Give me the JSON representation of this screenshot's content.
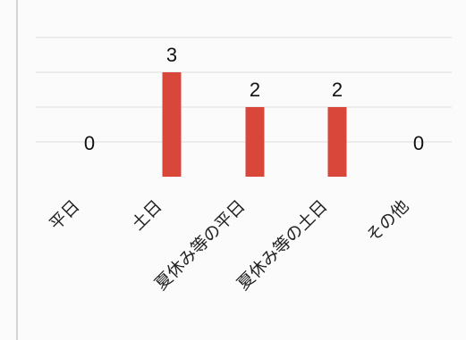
{
  "chart_data": {
    "type": "bar",
    "categories": [
      "平日",
      "土日",
      "夏休み等の平日",
      "夏休み等の土日",
      "その他"
    ],
    "values": [
      0,
      3,
      2,
      2,
      0
    ],
    "ylim": [
      0,
      4
    ],
    "grid": true,
    "bar_color": "#d9473b",
    "legend": "none"
  }
}
